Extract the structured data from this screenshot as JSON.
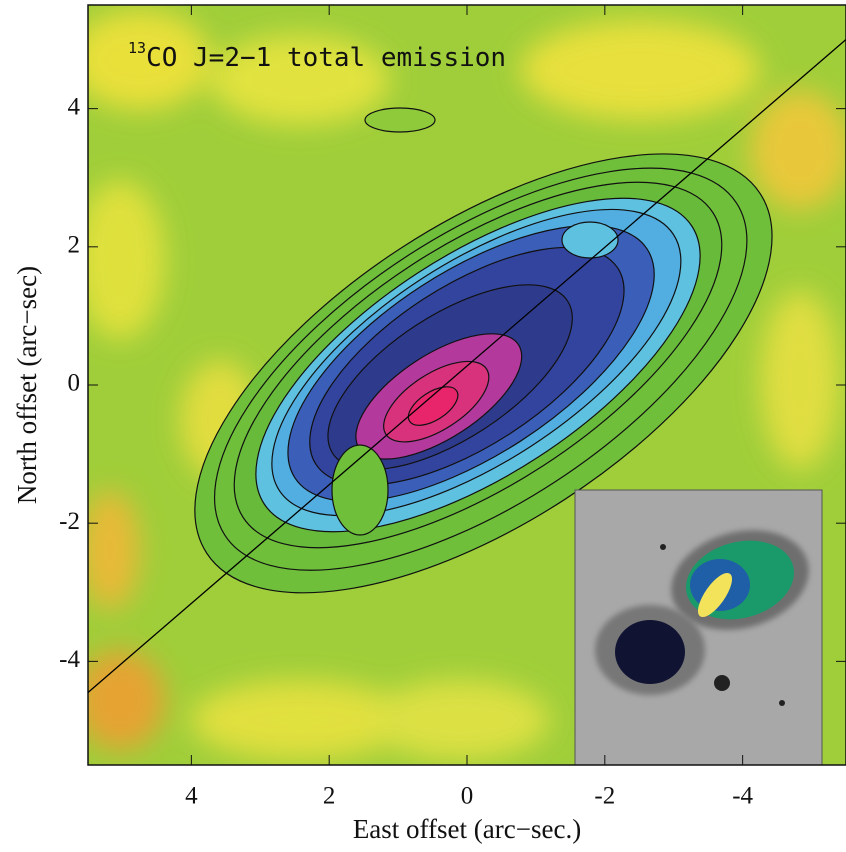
{
  "chart_data": {
    "type": "contour",
    "title_superscript": "13",
    "title": "CO J=2−1 total emission",
    "x_label": "East offset (arc−sec.)",
    "y_label": "North offset (arc−sec)",
    "xlim": [
      5.5,
      -5.5
    ],
    "ylim": [
      -5.5,
      5.5
    ],
    "xticks": [
      4,
      2,
      0,
      -2,
      -4
    ],
    "yticks": [
      4,
      2,
      0,
      -2,
      -4
    ],
    "line": {
      "x": [
        5.5,
        -5.5
      ],
      "y": [
        -4.45,
        5.0
      ],
      "color": "#000000"
    }
  }
}
